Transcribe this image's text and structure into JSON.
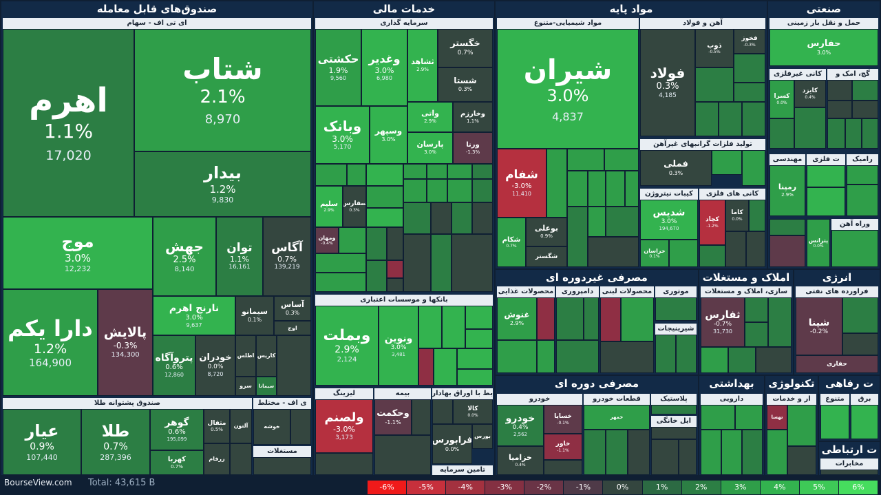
{
  "sectors": {
    "etf": "صندوق‌های قابل معامله",
    "financial": "خدمات مالی",
    "basic": "مواد پایه",
    "industrial": "صنعتی",
    "fmcg": "مصرفی غیردوره ای",
    "realestate": "املاک و مستغلات",
    "energy": "انرژی",
    "cyclical": "مصرفی دوره ای",
    "health": "بهداشتی",
    "tech": "تکنولوژی",
    "welfare": "ت رفاهی",
    "telecom": "ت ارتباطی"
  },
  "groups": {
    "etf_equity": "ای تی اف - سهام",
    "etf_gold": "صندوق پشتوانه طلا",
    "etf_mixed": "ی اف - مختلط",
    "etf_property": "مستغلات",
    "investment": "سرمایه گذاری",
    "banks": "بانکها و موسسات اعتباری",
    "leasing": "لیزینگ",
    "insurance": "بیمه",
    "bonds": "بط با اوراق بهادار",
    "finance_supply": "تامین سرمایه",
    "chem": "مواد شیمیایی-متنوع",
    "steel": "آهن و فولاد",
    "nonferrous": "تولید فلزات گرانبهای غیرآهن",
    "nitro": "کیبات نیتروژن",
    "metals": "کانی های فلزی",
    "transport": "حمل و نقل بار زمینی",
    "mining_nm": "کانی غیرفلزی",
    "cement": "گچ، امک و",
    "engineering": "مهندسی",
    "ceramics": "رامیک",
    "parts": "ت فلزی",
    "road": "وراه آهن",
    "food": "محصولات غذایی",
    "dairy": "دامپروری",
    "dairy2": "محصولات لبنی",
    "auto_parts": "موتوری",
    "sugar": "شیرینیجات",
    "rs_build": "سازی، املاک و مستغلات",
    "refinery": "فراورده های نفتی",
    "auto": "خودرو",
    "auto_parts2": "قطعات خودرو",
    "plastic": "پلاستیک",
    "home": "ایل خانگی",
    "pharma": "دارویی",
    "tech_serv": "ار و خدمات",
    "tech_gen": "متنوع",
    "edu": "برق",
    "telecom_sub": "مخابرات"
  },
  "tiles": {
    "ahrom": {
      "name": "اهرم",
      "change": "1.1%",
      "value": "17,020"
    },
    "shetab": {
      "name": "شتاب",
      "change": "2.1%",
      "value": "8,970"
    },
    "bidar": {
      "name": "بیدار",
      "change": "1.2%",
      "value": "9,830"
    },
    "mowj": {
      "name": "موج",
      "change": "3.0%",
      "value": "12,232"
    },
    "jahesh": {
      "name": "جهش",
      "change": "2.5%",
      "value": "8,140"
    },
    "tavan": {
      "name": "توان",
      "change": "1.1%",
      "value": "16,161"
    },
    "agas": {
      "name": "آگاس",
      "change": "0.7%",
      "value": "139,219"
    },
    "daraykom": {
      "name": "دارا یکم",
      "change": "1.2%",
      "value": "164,900"
    },
    "palayesh": {
      "name": "پالایش",
      "change": "-0.3%",
      "value": "134,300"
    },
    "narenj": {
      "name": "نارنج اهرم",
      "change": "3.0%",
      "value": "9,637"
    },
    "simano": {
      "name": "سیمانو",
      "change": "0.1%",
      "value": ""
    },
    "asas": {
      "name": "آساس",
      "change": "0.3%",
      "value": ""
    },
    "petroagah": {
      "name": "پتروآگاه",
      "change": "0.6%",
      "value": "12,860"
    },
    "khodran": {
      "name": "خودران",
      "change": "0.0%",
      "value": "8,720"
    },
    "atlas": {
      "name": "اطلس",
      "change": "",
      "value": ""
    },
    "karis": {
      "name": "کاریس",
      "change": "",
      "value": ""
    },
    "sarv": {
      "name": "سرو",
      "change": "",
      "value": ""
    },
    "simana": {
      "name": "سیمانا",
      "change": "",
      "value": ""
    },
    "owj": {
      "name": "اوج",
      "change": "",
      "value": ""
    },
    "ayar": {
      "name": "عیار",
      "change": "0.9%",
      "value": "107,440"
    },
    "tala": {
      "name": "طلا",
      "change": "0.7%",
      "value": "287,396"
    },
    "gohar": {
      "name": "گوهر",
      "change": "0.6%",
      "value": "195,099"
    },
    "mesghal": {
      "name": "مثقال",
      "change": "0.5%",
      "value": ""
    },
    "kahroba": {
      "name": "کهربا",
      "change": "0.7%",
      "value": ""
    },
    "zarfam": {
      "name": "زرفام",
      "change": "",
      "value": ""
    },
    "alton": {
      "name": "آلتون",
      "change": "",
      "value": ""
    },
    "khoshe": {
      "name": "خوشه",
      "change": "",
      "value": ""
    },
    "hakeshti": {
      "name": "حکشتی",
      "change": "1.9%",
      "value": "9,560"
    },
    "vaghadir": {
      "name": "وغدیر",
      "change": "3.0%",
      "value": "6,980"
    },
    "shahed": {
      "name": "ثشاهد",
      "change": "2.9%",
      "value": ""
    },
    "khegostar": {
      "name": "خگستر",
      "change": "0.7%",
      "value": ""
    },
    "shasta": {
      "name": "شستا",
      "change": "0.3%",
      "value": ""
    },
    "vabank": {
      "name": "وبانک",
      "change": "3.0%",
      "value": "5,170"
    },
    "vasepahr": {
      "name": "وسپهر",
      "change": "3.0%",
      "value": ""
    },
    "vati": {
      "name": "واتی",
      "change": "2.9%",
      "value": ""
    },
    "vakharazm": {
      "name": "وخارزم",
      "change": "1.1%",
      "value": ""
    },
    "parsan": {
      "name": "پارسان",
      "change": "3.0%",
      "value": ""
    },
    "varena": {
      "name": "ورنا",
      "change": "-1.3%",
      "value": ""
    },
    "salim": {
      "name": "سلیم",
      "change": "2.9%",
      "value": ""
    },
    "safars": {
      "name": "سفارس",
      "change": "0.3%",
      "value": ""
    },
    "vamehan": {
      "name": "ومهان",
      "change": "-0.4%",
      "value": ""
    },
    "vabemellat": {
      "name": "وبملت",
      "change": "2.9%",
      "value": "2,124"
    },
    "vanovin": {
      "name": "ونوین",
      "change": "3.0%",
      "value": "3,481"
    },
    "valsanam": {
      "name": "ولصنم",
      "change": "-3.0%",
      "value": "3,173"
    },
    "vahekmat": {
      "name": "وحکمت",
      "change": "-1.1%",
      "value": ""
    },
    "kala": {
      "name": "کالا",
      "change": "0.0%",
      "value": ""
    },
    "farabourse": {
      "name": "فرابورس",
      "change": "0.0%",
      "value": ""
    },
    "bourse": {
      "name": "بورس",
      "change": "",
      "value": ""
    },
    "shiran": {
      "name": "شیران",
      "change": "3.0%",
      "value": "4,837"
    },
    "shefam": {
      "name": "شفام",
      "change": "-3.0%",
      "value": "11,410"
    },
    "shekam": {
      "name": "شکام",
      "change": "0.7%",
      "value": ""
    },
    "boali": {
      "name": "بوعلی",
      "change": "0.9%",
      "value": ""
    },
    "shegostar": {
      "name": "شگستر",
      "change": "",
      "value": ""
    },
    "foulad": {
      "name": "فولاد",
      "change": "0.3%",
      "value": "4,185"
    },
    "fakhouz": {
      "name": "فخوز",
      "change": "-0.3%",
      "value": ""
    },
    "zob": {
      "name": "ذوب",
      "change": "-0.5%",
      "value": ""
    },
    "fameli": {
      "name": "فملی",
      "change": "0.3%",
      "value": ""
    },
    "shedis": {
      "name": "شدیس",
      "change": "3.0%",
      "value": "194,670"
    },
    "khorasan": {
      "name": "خراسان",
      "change": "0.1%",
      "value": ""
    },
    "kechad": {
      "name": "کچاد",
      "change": "-1.2%",
      "value": ""
    },
    "kama": {
      "name": "کاما",
      "change": "0.0%",
      "value": ""
    },
    "hafares": {
      "name": "حفارس",
      "change": "3.0%",
      "value": ""
    },
    "kesra": {
      "name": "کسرا",
      "change": "0.0%",
      "value": ""
    },
    "kayzad": {
      "name": "کایزد",
      "change": "0.4%",
      "value": ""
    },
    "ramapna": {
      "name": "رمپنا",
      "change": "2.9%",
      "value": ""
    },
    "petrus": {
      "name": "پترانس",
      "change": "0.0%",
      "value": ""
    },
    "ghenoosh": {
      "name": "غنوش",
      "change": "2.9%",
      "value": ""
    },
    "ghesaras": {
      "name": "ثفارس",
      "change": "-0.7%",
      "value": "31,730"
    },
    "shepna": {
      "name": "شپنا",
      "change": "-0.2%",
      "value": ""
    },
    "hefari": {
      "name": "حفاری",
      "change": "",
      "value": ""
    },
    "khodro": {
      "name": "خودرو",
      "change": "0.4%",
      "value": "2,562"
    },
    "khesapa": {
      "name": "خساپا",
      "change": "-0.1%",
      "value": ""
    },
    "khavar": {
      "name": "خاور",
      "change": "-1.1%",
      "value": ""
    },
    "khazamia": {
      "name": "خزامیا",
      "change": "0.4%",
      "value": ""
    },
    "khomehr": {
      "name": "خمهر",
      "change": "",
      "value": ""
    },
    "tehsa": {
      "name": "تهسا",
      "change": "",
      "value": ""
    }
  },
  "footer": {
    "brand": "BourseView.com",
    "total": "Total: 43,615 B"
  },
  "legend": [
    "-6%",
    "-5%",
    "-4%",
    "-3%",
    "-2%",
    "-1%",
    "0%",
    "1%",
    "2%",
    "3%",
    "4%",
    "5%",
    "6%"
  ],
  "legend_colors": [
    "#f01a1a",
    "#c7303c",
    "#a3313f",
    "#843042",
    "#6a3446",
    "#4f3a48",
    "#34463f",
    "#2c6a43",
    "#2c7e44",
    "#2f9e49",
    "#33b34f",
    "#3ec957",
    "#46dd5e"
  ]
}
